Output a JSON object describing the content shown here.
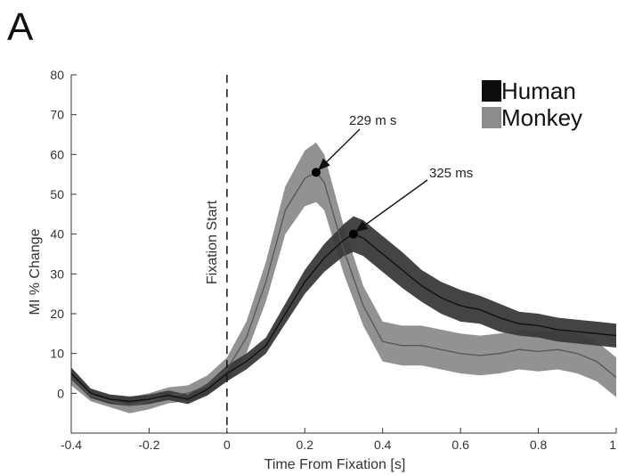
{
  "panel_letter": "A",
  "chart_data": {
    "type": "line",
    "title": "",
    "xlabel": "Time From Fixation [s]",
    "ylabel": "MI % Change",
    "xlim": [
      -0.4,
      1.0
    ],
    "ylim": [
      -10,
      80
    ],
    "xticks": [
      -0.4,
      -0.2,
      0,
      0.2,
      0.4,
      0.6,
      0.8,
      1
    ],
    "xtick_labels": [
      "-0.4",
      "-0.2",
      "0",
      "0.2",
      "0.4",
      "0.6",
      "0.8",
      "1"
    ],
    "yticks": [
      0,
      10,
      20,
      30,
      40,
      50,
      60,
      70,
      80
    ],
    "ytick_labels": [
      "0",
      "10",
      "20",
      "30",
      "40",
      "50",
      "60",
      "70",
      "80"
    ],
    "grid": false,
    "legend_position": "top-right",
    "vline": {
      "x": 0,
      "style": "dashed",
      "label": "Fixation Start"
    },
    "colors": {
      "human": "#1e1e1e",
      "human_band": "#3a3a3a",
      "monkey": "#6e6e6e",
      "monkey_band": "#8c8c8c"
    },
    "series": [
      {
        "name": "Human",
        "x": [
          -0.4,
          -0.35,
          -0.3,
          -0.25,
          -0.2,
          -0.15,
          -0.1,
          -0.05,
          0,
          0.05,
          0.1,
          0.15,
          0.2,
          0.25,
          0.3,
          0.325,
          0.35,
          0.4,
          0.45,
          0.5,
          0.55,
          0.6,
          0.65,
          0.7,
          0.75,
          0.8,
          0.85,
          0.9,
          0.95,
          1.0
        ],
        "y": [
          5,
          0,
          -1.5,
          -2,
          -1.5,
          -0.5,
          -1.5,
          1,
          5,
          8,
          12,
          20,
          28,
          34,
          38.5,
          40,
          39,
          35,
          31,
          27,
          24,
          22,
          21,
          19,
          17.5,
          17,
          16,
          15.5,
          15,
          14.5
        ],
        "half_width": [
          1.5,
          1.2,
          1.2,
          1.2,
          1.2,
          1.2,
          1.2,
          1.5,
          2,
          2,
          2,
          2.5,
          3,
          3.5,
          4,
          4.5,
          4.5,
          4.5,
          4.5,
          4,
          4,
          4,
          3.5,
          3.5,
          3,
          3,
          3,
          3,
          3,
          3
        ]
      },
      {
        "name": "Monkey",
        "x": [
          -0.4,
          -0.35,
          -0.3,
          -0.25,
          -0.2,
          -0.15,
          -0.1,
          -0.05,
          0,
          0.05,
          0.1,
          0.15,
          0.2,
          0.229,
          0.25,
          0.3,
          0.35,
          0.4,
          0.45,
          0.5,
          0.55,
          0.6,
          0.65,
          0.7,
          0.75,
          0.8,
          0.85,
          0.9,
          0.95,
          1.0
        ],
        "y": [
          4,
          -0.5,
          -2,
          -3,
          -2,
          -0.5,
          0,
          2,
          6,
          14,
          28,
          46,
          54,
          55.5,
          53,
          36,
          22,
          13,
          12,
          12,
          11,
          10,
          9.5,
          10,
          11,
          10.5,
          11,
          10,
          8,
          4
        ],
        "half_width": [
          2,
          1.5,
          1.5,
          2,
          2,
          2,
          2,
          2.5,
          3,
          4,
          5,
          6,
          7,
          7.5,
          7,
          6,
          5,
          5,
          5,
          5,
          5,
          5,
          5,
          5,
          5,
          5,
          5,
          5,
          5,
          5
        ]
      }
    ],
    "annotations": [
      {
        "text": "229 m s",
        "x": 0.229,
        "y": 55.5
      },
      {
        "text": "325 ms",
        "x": 0.325,
        "y": 40
      }
    ]
  }
}
